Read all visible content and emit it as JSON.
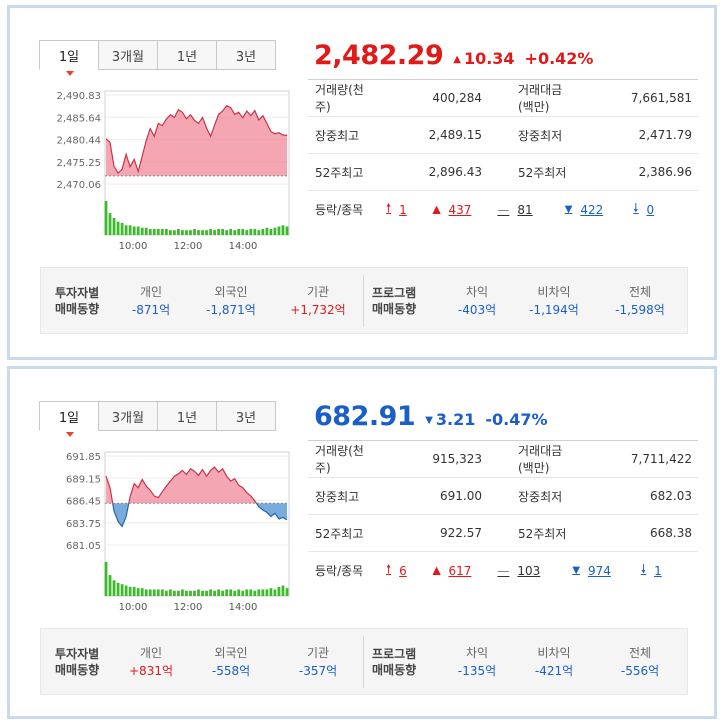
{
  "panels": [
    {
      "tabs": [
        "1일",
        "3개월",
        "1년",
        "3년"
      ],
      "active_tab": "1일",
      "price": "2,482.29",
      "direction": "up",
      "change": "10.34",
      "percent": "+0.42%",
      "stats": [
        {
          "label": "거래량(천주)",
          "value": "400,284",
          "label2": "거래대금(백만)",
          "value2": "7,661,581"
        },
        {
          "label": "장중최고",
          "value": "2,489.15",
          "label2": "장중최저",
          "value2": "2,471.79"
        },
        {
          "label": "52주최고",
          "value": "2,896.43",
          "label2": "52주최저",
          "value2": "2,386.96"
        }
      ],
      "advance_label": "등락/종목",
      "advance": {
        "upper_limit": "1",
        "up": "437",
        "flat": "81",
        "down": "422",
        "lower_limit": "0"
      },
      "investor_title": [
        "투자자별",
        "매매동향"
      ],
      "investors": [
        {
          "name": "개인",
          "value": "-871억",
          "sign": "down"
        },
        {
          "name": "외국인",
          "value": "-1,871억",
          "sign": "down"
        },
        {
          "name": "기관",
          "value": "+1,732억",
          "sign": "up"
        }
      ],
      "program_title": [
        "프로그램",
        "매매동향"
      ],
      "program": [
        {
          "name": "차익",
          "value": "-403억",
          "sign": "down"
        },
        {
          "name": "비차익",
          "value": "-1,194억",
          "sign": "down"
        },
        {
          "name": "전체",
          "value": "-1,598억",
          "sign": "down"
        }
      ],
      "chart_data": {
        "type": "area",
        "y_ticks": [
          "2,490.83",
          "2,485.64",
          "2,480.44",
          "2,475.25",
          "2,470.06"
        ],
        "ylim": [
          2470.06,
          2490.83
        ],
        "x_ticks": [
          "10:00",
          "12:00",
          "14:00"
        ],
        "base": 2471.95,
        "colors": {
          "above": "#f08a98",
          "below": "#4a90d0",
          "volume": "#3dba2c"
        },
        "values": [
          2480.6,
          2479.8,
          2474.2,
          2472.6,
          2473.5,
          2477.0,
          2474.1,
          2475.8,
          2473.0,
          2476.5,
          2480.2,
          2483.0,
          2481.2,
          2484.2,
          2483.7,
          2485.2,
          2486.2,
          2485.6,
          2487.4,
          2486.8,
          2485.3,
          2486.2,
          2484.9,
          2484.2,
          2485.6,
          2483.1,
          2481.2,
          2483.8,
          2486.3,
          2487.1,
          2488.3,
          2487.9,
          2486.3,
          2486.8,
          2485.5,
          2487.1,
          2486.0,
          2487.2,
          2485.0,
          2486.0,
          2484.2,
          2482.3,
          2481.8,
          2482.0,
          2481.5,
          2481.4
        ],
        "volume": [
          28,
          18,
          14,
          11,
          10,
          8,
          8,
          7,
          7,
          6,
          6,
          5,
          5,
          5,
          5,
          5,
          4,
          4,
          5,
          4,
          4,
          4,
          5,
          4,
          4,
          4,
          5,
          4,
          5,
          5,
          4,
          5,
          4,
          5,
          5,
          4,
          5,
          5,
          4,
          5,
          6,
          5,
          6,
          7,
          8,
          7
        ]
      }
    },
    {
      "tabs": [
        "1일",
        "3개월",
        "1년",
        "3년"
      ],
      "active_tab": "1일",
      "price": "682.91",
      "direction": "down",
      "change": "3.21",
      "percent": "-0.47%",
      "stats": [
        {
          "label": "거래량(천주)",
          "value": "915,323",
          "label2": "거래대금(백만)",
          "value2": "7,711,422"
        },
        {
          "label": "장중최고",
          "value": "691.00",
          "label2": "장중최저",
          "value2": "682.03"
        },
        {
          "label": "52주최고",
          "value": "922.57",
          "label2": "52주최저",
          "value2": "668.38"
        }
      ],
      "advance_label": "등락/종목",
      "advance": {
        "upper_limit": "6",
        "up": "617",
        "flat": "103",
        "down": "974",
        "lower_limit": "1"
      },
      "investor_title": [
        "투자자별",
        "매매동향"
      ],
      "investors": [
        {
          "name": "개인",
          "value": "+831억",
          "sign": "up"
        },
        {
          "name": "외국인",
          "value": "-558억",
          "sign": "down"
        },
        {
          "name": "기관",
          "value": "-357억",
          "sign": "down"
        }
      ],
      "program_title": [
        "프로그램",
        "매매동향"
      ],
      "program": [
        {
          "name": "차익",
          "value": "-135억",
          "sign": "down"
        },
        {
          "name": "비차익",
          "value": "-421억",
          "sign": "down"
        },
        {
          "name": "전체",
          "value": "-556억",
          "sign": "down"
        }
      ],
      "chart_data": {
        "type": "area",
        "y_ticks": [
          "691.85",
          "689.15",
          "686.45",
          "683.75",
          "681.05"
        ],
        "ylim": [
          681.05,
          691.85
        ],
        "x_ticks": [
          "10:00",
          "12:00",
          "14:00"
        ],
        "base": 686.12,
        "colors": {
          "above": "#f08a98",
          "below": "#4a90d0",
          "volume": "#3dba2c"
        },
        "values": [
          689.4,
          688.0,
          685.2,
          683.9,
          683.3,
          684.5,
          686.9,
          688.5,
          688.0,
          689.0,
          688.2,
          687.7,
          687.0,
          686.8,
          687.5,
          688.2,
          688.8,
          689.4,
          689.7,
          690.1,
          689.6,
          690.3,
          690.0,
          689.5,
          690.2,
          689.4,
          690.1,
          690.5,
          689.9,
          690.3,
          689.4,
          688.8,
          689.1,
          688.3,
          688.0,
          687.4,
          687.0,
          686.4,
          685.7,
          685.3,
          685.0,
          684.5,
          684.9,
          684.2,
          684.4,
          684.1
        ],
        "volume": [
          26,
          16,
          12,
          10,
          9,
          8,
          7,
          7,
          6,
          6,
          5,
          5,
          5,
          5,
          5,
          4,
          5,
          4,
          4,
          5,
          4,
          4,
          4,
          5,
          4,
          4,
          5,
          4,
          5,
          4,
          5,
          5,
          4,
          5,
          4,
          5,
          5,
          4,
          5,
          5,
          5,
          6,
          5,
          7,
          8,
          6
        ]
      }
    }
  ]
}
